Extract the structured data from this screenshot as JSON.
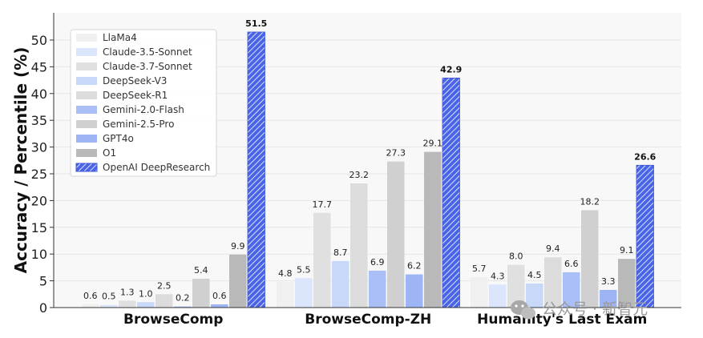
{
  "chart_data": {
    "type": "bar",
    "title": "",
    "xlabel": "",
    "ylabel": "Accuracy / Percentile (%)",
    "ylim": [
      0,
      55
    ],
    "yticks": [
      0,
      5,
      10,
      15,
      20,
      25,
      30,
      35,
      40,
      45,
      50
    ],
    "grid": true,
    "legend_position": "top-left",
    "categories": [
      "BrowseComp",
      "BrowseComp-ZH",
      "Humanity's Last Exam"
    ],
    "series": [
      {
        "name": "LlaMa4",
        "color": "#f0f0f0",
        "values": [
          0.6,
          4.8,
          5.7
        ]
      },
      {
        "name": "Claude-3.5-Sonnet",
        "color": "#dbe5fb",
        "values": [
          0.5,
          5.5,
          4.3
        ]
      },
      {
        "name": "Claude-3.7-Sonnet",
        "color": "#e0e0e0",
        "values": [
          1.3,
          17.7,
          8.0
        ]
      },
      {
        "name": "DeepSeek-V3",
        "color": "#c8d8f9",
        "values": [
          1.0,
          8.7,
          4.5
        ]
      },
      {
        "name": "DeepSeek-R1",
        "color": "#dcdcdc",
        "values": [
          2.5,
          23.2,
          9.4
        ]
      },
      {
        "name": "Gemini-2.0-Flash",
        "color": "#aabff6",
        "values": [
          0.2,
          6.9,
          6.6
        ]
      },
      {
        "name": "Gemini-2.5-Pro",
        "color": "#d0d0d0",
        "values": [
          5.4,
          27.3,
          18.2
        ]
      },
      {
        "name": "GPT4o",
        "color": "#9db4f5",
        "values": [
          0.6,
          6.2,
          3.3
        ]
      },
      {
        "name": "O1",
        "color": "#b9b9b9",
        "values": [
          9.9,
          29.1,
          9.1
        ]
      },
      {
        "name": "OpenAI DeepResearch",
        "color": "#4a64e8",
        "hatched": true,
        "values": [
          51.5,
          42.9,
          26.6
        ]
      }
    ]
  },
  "watermark": {
    "text": "公众号 · 新智元"
  }
}
